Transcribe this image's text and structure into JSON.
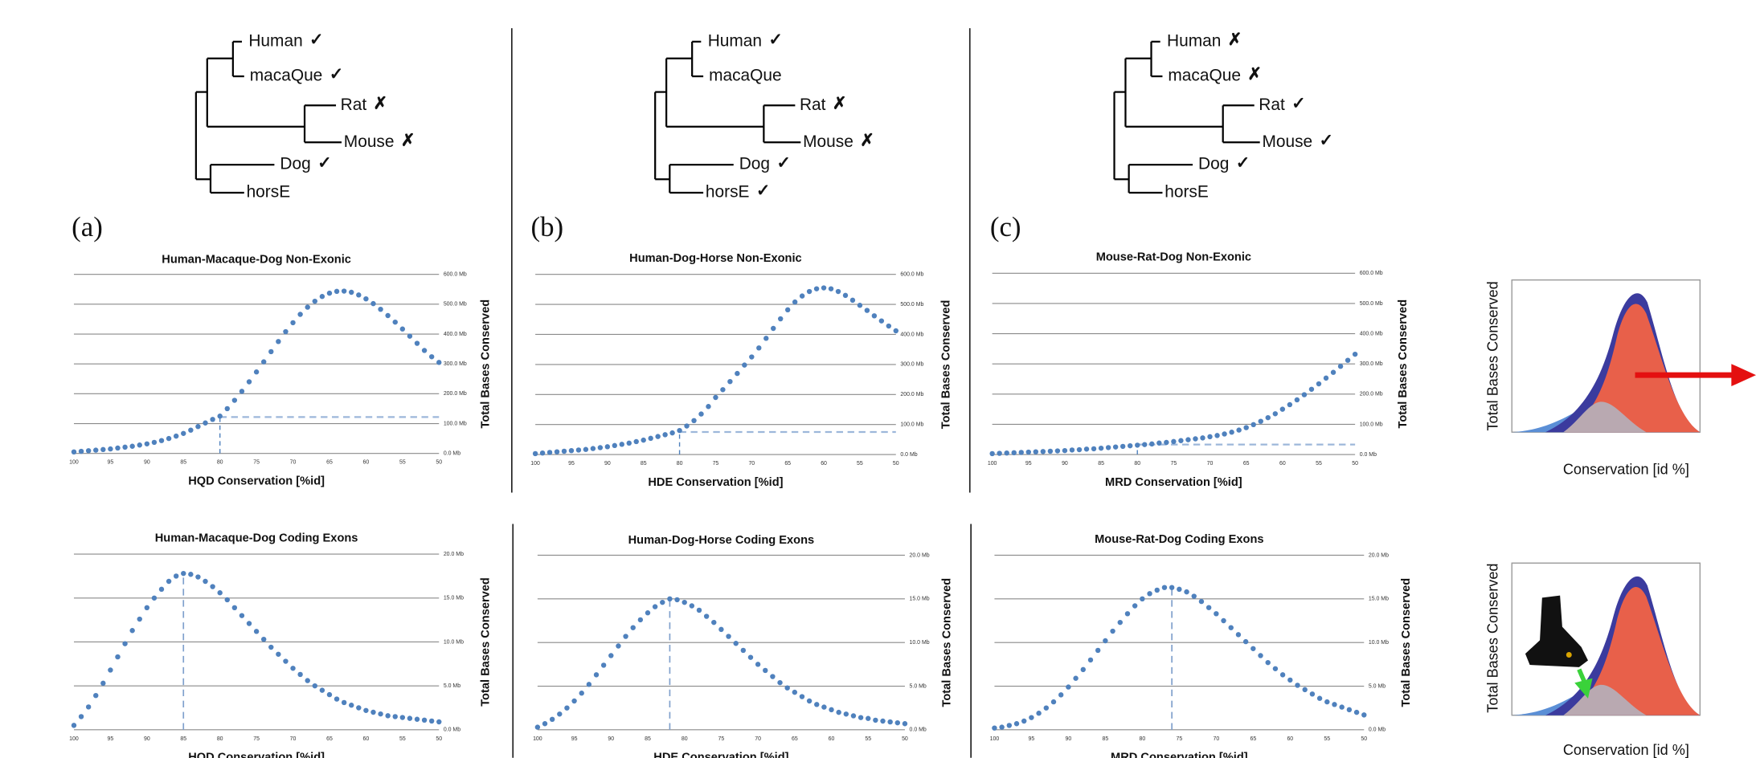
{
  "trees": [
    {
      "panel": "(a)",
      "leaves": [
        {
          "name": "Human",
          "status": "✓",
          "color": "#2ecc2e"
        },
        {
          "name": "macaQue",
          "status": "✓",
          "color": "#2ecc2e"
        },
        {
          "name": "Rat",
          "status": "✗",
          "color": "#e81818"
        },
        {
          "name": "Mouse",
          "status": "✗",
          "color": "#e81818"
        },
        {
          "name": "Dog",
          "status": "✓",
          "color": "#2ecc2e"
        },
        {
          "name": "horsE"
        }
      ]
    },
    {
      "panel": "(b)",
      "leaves": [
        {
          "name": "Human",
          "status": "✓",
          "color": "#2ecc2e"
        },
        {
          "name": "macaQue"
        },
        {
          "name": "Rat",
          "status": "✗",
          "color": "#e81818"
        },
        {
          "name": "Mouse",
          "status": "✗",
          "color": "#e81818"
        },
        {
          "name": "Dog",
          "status": "✓",
          "color": "#2ecc2e"
        },
        {
          "name": "horsE",
          "status": "✓",
          "color": "#2ecc2e"
        }
      ]
    },
    {
      "panel": "(c)",
      "leaves": [
        {
          "name": "Human",
          "status": "✗",
          "color": "#e81818"
        },
        {
          "name": "macaQue",
          "status": "✗",
          "color": "#e81818"
        },
        {
          "name": "Rat",
          "status": "✓",
          "color": "#2ecc2e"
        },
        {
          "name": "Mouse",
          "status": "✓",
          "color": "#2ecc2e"
        },
        {
          "name": "Dog",
          "status": "✓",
          "color": "#2ecc2e"
        },
        {
          "name": "horsE"
        }
      ]
    }
  ],
  "chart_data": [
    {
      "type": "scatter",
      "title": "Human-Macaque-Dog Non-Exonic",
      "xlabel": "HQD Conservation [%id]",
      "ylabel": "Total Bases Conserved",
      "color": "#4f81bd",
      "x": [
        100,
        99,
        98,
        97,
        96,
        95,
        94,
        93,
        92,
        91,
        90,
        89,
        88,
        87,
        86,
        85,
        84,
        83,
        82,
        81,
        80,
        79,
        78,
        77,
        76,
        75,
        74,
        73,
        72,
        71,
        70,
        69,
        68,
        67,
        66,
        65,
        64,
        63,
        62,
        61,
        60,
        59,
        58,
        57,
        56,
        55,
        54,
        53,
        52,
        51,
        50
      ],
      "values": [
        5,
        7,
        9,
        11,
        13,
        15,
        18,
        21,
        24,
        28,
        32,
        37,
        43,
        50,
        58,
        67,
        78,
        90,
        102,
        114,
        125,
        150,
        178,
        208,
        240,
        273,
        307,
        341,
        375,
        408,
        438,
        466,
        490,
        510,
        526,
        537,
        543,
        544,
        540,
        531,
        518,
        502,
        483,
        462,
        440,
        417,
        393,
        369,
        345,
        324,
        305
      ],
      "xlim": [
        100,
        50
      ],
      "ylim": [
        0,
        600
      ],
      "xticks": [
        100,
        95,
        90,
        85,
        80,
        75,
        70,
        65,
        60,
        55,
        50
      ],
      "yticks": [
        {
          "value": 0,
          "label": "0.0 Mb"
        },
        {
          "value": 100,
          "label": "100.0 Mb"
        },
        {
          "value": 200,
          "label": "200.0 Mb"
        },
        {
          "value": 300,
          "label": "300.0 Mb"
        },
        {
          "value": 400,
          "label": "400.0 Mb"
        },
        {
          "value": 500,
          "label": "500.0 Mb"
        },
        {
          "value": 600,
          "label": "600.0 Mb"
        }
      ],
      "grid": true,
      "ref_x": 80,
      "ref_y": 122
    },
    {
      "type": "scatter",
      "title": "Human-Dog-Horse Non-Exonic",
      "xlabel": "HDE Conservation [%id]",
      "ylabel": "Total Bases Conserved",
      "color": "#4f81bd",
      "x": [
        100,
        99,
        98,
        97,
        96,
        95,
        94,
        93,
        92,
        91,
        90,
        89,
        88,
        87,
        86,
        85,
        84,
        83,
        82,
        81,
        80,
        79,
        78,
        77,
        76,
        75,
        74,
        73,
        72,
        71,
        70,
        69,
        68,
        67,
        66,
        65,
        64,
        63,
        62,
        61,
        60,
        59,
        58,
        57,
        56,
        55,
        54,
        53,
        52,
        51,
        50
      ],
      "values": [
        3,
        5,
        7,
        9,
        11,
        13,
        15,
        17,
        20,
        23,
        26,
        30,
        34,
        38,
        43,
        48,
        54,
        60,
        66,
        72,
        80,
        95,
        113,
        135,
        160,
        190,
        216,
        243,
        270,
        298,
        325,
        355,
        387,
        420,
        452,
        482,
        508,
        528,
        543,
        552,
        555,
        552,
        543,
        530,
        514,
        497,
        480,
        462,
        445,
        428,
        412
      ],
      "xlim": [
        100,
        50
      ],
      "ylim": [
        0,
        600
      ],
      "xticks": [
        100,
        95,
        90,
        85,
        80,
        75,
        70,
        65,
        60,
        55,
        50
      ],
      "yticks": [
        {
          "value": 0,
          "label": "0.0 Mb"
        },
        {
          "value": 100,
          "label": "100.0 Mb"
        },
        {
          "value": 200,
          "label": "200.0 Mb"
        },
        {
          "value": 300,
          "label": "300.0 Mb"
        },
        {
          "value": 400,
          "label": "400.0 Mb"
        },
        {
          "value": 500,
          "label": "500.0 Mb"
        },
        {
          "value": 600,
          "label": "600.0 Mb"
        }
      ],
      "grid": true,
      "ref_x": 80,
      "ref_y": 75
    },
    {
      "type": "scatter",
      "title": "Mouse-Rat-Dog Non-Exonic",
      "xlabel": "MRD Conservation [%id]",
      "ylabel": "Total Bases Conserved",
      "color": "#4f81bd",
      "x": [
        100,
        99,
        98,
        97,
        96,
        95,
        94,
        93,
        92,
        91,
        90,
        89,
        88,
        87,
        86,
        85,
        84,
        83,
        82,
        81,
        80,
        79,
        78,
        77,
        76,
        75,
        74,
        73,
        72,
        71,
        70,
        69,
        68,
        67,
        66,
        65,
        64,
        63,
        62,
        61,
        60,
        59,
        58,
        57,
        56,
        55,
        54,
        53,
        52,
        51,
        50
      ],
      "values": [
        3,
        4,
        5,
        6,
        7,
        8,
        9,
        10,
        11,
        12,
        13,
        15,
        16,
        18,
        19,
        21,
        23,
        25,
        27,
        29,
        31,
        33,
        35,
        38,
        40,
        43,
        46,
        49,
        52,
        55,
        59,
        63,
        68,
        74,
        81,
        89,
        99,
        110,
        122,
        135,
        150,
        165,
        181,
        198,
        216,
        234,
        253,
        272,
        292,
        312,
        332
      ],
      "xlim": [
        100,
        50
      ],
      "ylim": [
        0,
        600
      ],
      "xticks": [
        100,
        95,
        90,
        85,
        80,
        75,
        70,
        65,
        60,
        55,
        50
      ],
      "yticks": [
        {
          "value": 0,
          "label": "0.0 Mb"
        },
        {
          "value": 100,
          "label": "100.0 Mb"
        },
        {
          "value": 200,
          "label": "200.0 Mb"
        },
        {
          "value": 300,
          "label": "300.0 Mb"
        },
        {
          "value": 400,
          "label": "400.0 Mb"
        },
        {
          "value": 500,
          "label": "500.0 Mb"
        },
        {
          "value": 600,
          "label": "600.0 Mb"
        }
      ],
      "grid": true,
      "ref_x": 80,
      "ref_y": 33
    },
    {
      "type": "scatter",
      "title": "Human-Macaque-Dog Coding Exons",
      "xlabel": "HQD Conservation [%id]",
      "ylabel": "Total Bases Conserved",
      "color": "#4f81bd",
      "x": [
        100,
        99,
        98,
        97,
        96,
        95,
        94,
        93,
        92,
        91,
        90,
        89,
        88,
        87,
        86,
        85,
        84,
        83,
        82,
        81,
        80,
        79,
        78,
        77,
        76,
        75,
        74,
        73,
        72,
        71,
        70,
        69,
        68,
        67,
        66,
        65,
        64,
        63,
        62,
        61,
        60,
        59,
        58,
        57,
        56,
        55,
        54,
        53,
        52,
        51,
        50
      ],
      "values": [
        0.5,
        1.5,
        2.6,
        3.9,
        5.3,
        6.8,
        8.3,
        9.8,
        11.3,
        12.6,
        13.9,
        15.0,
        16.0,
        16.9,
        17.5,
        17.8,
        17.7,
        17.4,
        16.9,
        16.3,
        15.6,
        14.8,
        13.9,
        13.0,
        12.1,
        11.2,
        10.3,
        9.4,
        8.6,
        7.8,
        7.0,
        6.3,
        5.6,
        5.0,
        4.5,
        4.0,
        3.5,
        3.1,
        2.8,
        2.5,
        2.2,
        2.0,
        1.8,
        1.6,
        1.5,
        1.4,
        1.3,
        1.2,
        1.1,
        1.0,
        0.9
      ],
      "xlim": [
        100,
        50
      ],
      "ylim": [
        0,
        20
      ],
      "xticks": [
        100,
        95,
        90,
        85,
        80,
        75,
        70,
        65,
        60,
        55,
        50
      ],
      "yticks": [
        {
          "value": 0,
          "label": "0.0 Mb"
        },
        {
          "value": 5,
          "label": "5.0 Mb"
        },
        {
          "value": 10,
          "label": "10.0 Mb"
        },
        {
          "value": 15,
          "label": "15.0 Mb"
        },
        {
          "value": 20,
          "label": "20.0 Mb"
        }
      ],
      "grid": true,
      "ref_x": 85
    },
    {
      "type": "scatter",
      "title": "Human-Dog-Horse Coding Exons",
      "xlabel": "HDE Conservation [%id]",
      "ylabel": "Total Bases Conserved",
      "color": "#4f81bd",
      "x": [
        100,
        99,
        98,
        97,
        96,
        95,
        94,
        93,
        92,
        91,
        90,
        89,
        88,
        87,
        86,
        85,
        84,
        83,
        82,
        81,
        80,
        79,
        78,
        77,
        76,
        75,
        74,
        73,
        72,
        71,
        70,
        69,
        68,
        67,
        66,
        65,
        64,
        63,
        62,
        61,
        60,
        59,
        58,
        57,
        56,
        55,
        54,
        53,
        52,
        51,
        50
      ],
      "values": [
        0.3,
        0.7,
        1.2,
        1.8,
        2.5,
        3.3,
        4.2,
        5.2,
        6.3,
        7.4,
        8.5,
        9.6,
        10.7,
        11.7,
        12.6,
        13.4,
        14.1,
        14.6,
        15.0,
        14.9,
        14.6,
        14.2,
        13.7,
        13.0,
        12.3,
        11.5,
        10.7,
        9.9,
        9.1,
        8.3,
        7.5,
        6.8,
        6.1,
        5.4,
        4.8,
        4.3,
        3.8,
        3.3,
        2.9,
        2.6,
        2.3,
        2.0,
        1.8,
        1.6,
        1.4,
        1.3,
        1.1,
        1.0,
        0.9,
        0.8,
        0.7
      ],
      "xlim": [
        100,
        50
      ],
      "ylim": [
        0,
        20
      ],
      "xticks": [
        100,
        95,
        90,
        85,
        80,
        75,
        70,
        65,
        60,
        55,
        50
      ],
      "yticks": [
        {
          "value": 0,
          "label": "0.0 Mb"
        },
        {
          "value": 5,
          "label": "5.0 Mb"
        },
        {
          "value": 10,
          "label": "10.0 Mb"
        },
        {
          "value": 15,
          "label": "15.0 Mb"
        },
        {
          "value": 20,
          "label": "20.0 Mb"
        }
      ],
      "grid": true,
      "ref_x": 82
    },
    {
      "type": "scatter",
      "title": "Mouse-Rat-Dog Coding Exons",
      "xlabel": "MRD Conservation [%id]",
      "ylabel": "Total Bases Conserved",
      "color": "#4f81bd",
      "x": [
        100,
        99,
        98,
        97,
        96,
        95,
        94,
        93,
        92,
        91,
        90,
        89,
        88,
        87,
        86,
        85,
        84,
        83,
        82,
        81,
        80,
        79,
        78,
        77,
        76,
        75,
        74,
        73,
        72,
        71,
        70,
        69,
        68,
        67,
        66,
        65,
        64,
        63,
        62,
        61,
        60,
        59,
        58,
        57,
        56,
        55,
        54,
        53,
        52,
        51,
        50
      ],
      "values": [
        0.2,
        0.3,
        0.5,
        0.7,
        1.0,
        1.4,
        1.9,
        2.5,
        3.2,
        4.0,
        4.9,
        5.9,
        6.9,
        8.0,
        9.1,
        10.2,
        11.3,
        12.3,
        13.3,
        14.2,
        15.0,
        15.6,
        16.0,
        16.3,
        16.3,
        16.1,
        15.8,
        15.3,
        14.7,
        14.0,
        13.3,
        12.5,
        11.7,
        10.9,
        10.1,
        9.3,
        8.5,
        7.7,
        7.0,
        6.3,
        5.7,
        5.1,
        4.6,
        4.1,
        3.6,
        3.2,
        2.9,
        2.6,
        2.3,
        2.0,
        1.7
      ],
      "xlim": [
        100,
        50
      ],
      "ylim": [
        0,
        20
      ],
      "xticks": [
        100,
        95,
        90,
        85,
        80,
        75,
        70,
        65,
        60,
        55,
        50
      ],
      "yticks": [
        {
          "value": 0,
          "label": "0.0 Mb"
        },
        {
          "value": 5,
          "label": "5.0 Mb"
        },
        {
          "value": 10,
          "label": "10.0 Mb"
        },
        {
          "value": 15,
          "label": "15.0 Mb"
        },
        {
          "value": 20,
          "label": "20.0 Mb"
        }
      ],
      "grid": true,
      "ref_x": 76
    }
  ],
  "schematics": [
    {
      "ylabel": "Total Bases Conserved",
      "xlabel": "Conservation [id %]"
    },
    {
      "ylabel": "Total Bases Conserved",
      "xlabel": "Conservation [id %]"
    }
  ]
}
